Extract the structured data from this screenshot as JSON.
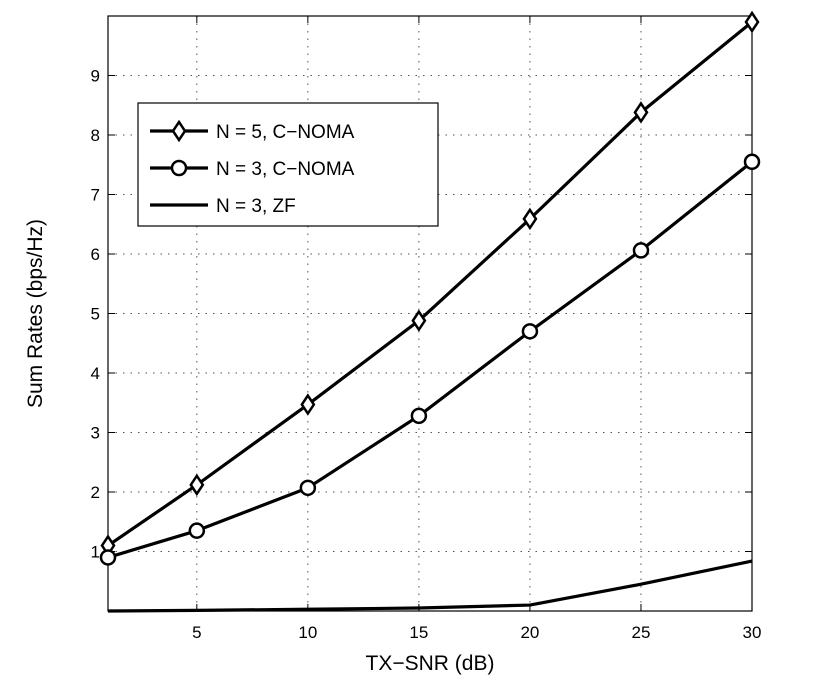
{
  "chart_data": {
    "type": "line",
    "title": "",
    "xlabel": "TX−SNR (dB)",
    "ylabel": "Sum Rates (bps/Hz)",
    "xlim": [
      1,
      30
    ],
    "ylim": [
      0,
      10
    ],
    "xticks": [
      5,
      10,
      15,
      20,
      25,
      30
    ],
    "yticks": [
      1,
      2,
      3,
      4,
      5,
      6,
      7,
      8,
      9
    ],
    "grid": true,
    "legend_position": "top-left",
    "x": [
      1,
      5,
      10,
      15,
      20,
      25,
      30
    ],
    "series": [
      {
        "name": "N = 5, C−NOMA",
        "marker": "diamond",
        "values": [
          1.1,
          2.12,
          3.47,
          4.88,
          6.59,
          8.38,
          9.9
        ]
      },
      {
        "name": "N = 3, C−NOMA",
        "marker": "circle",
        "values": [
          0.9,
          1.35,
          2.07,
          3.28,
          4.7,
          6.06,
          7.55
        ]
      },
      {
        "name": "N = 3, ZF",
        "marker": "none",
        "values": [
          0.0,
          0.01,
          0.03,
          0.05,
          0.1,
          0.45,
          0.84
        ]
      }
    ]
  },
  "colors": {
    "line": "#000000",
    "grid": "#555555",
    "background": "#ffffff"
  }
}
